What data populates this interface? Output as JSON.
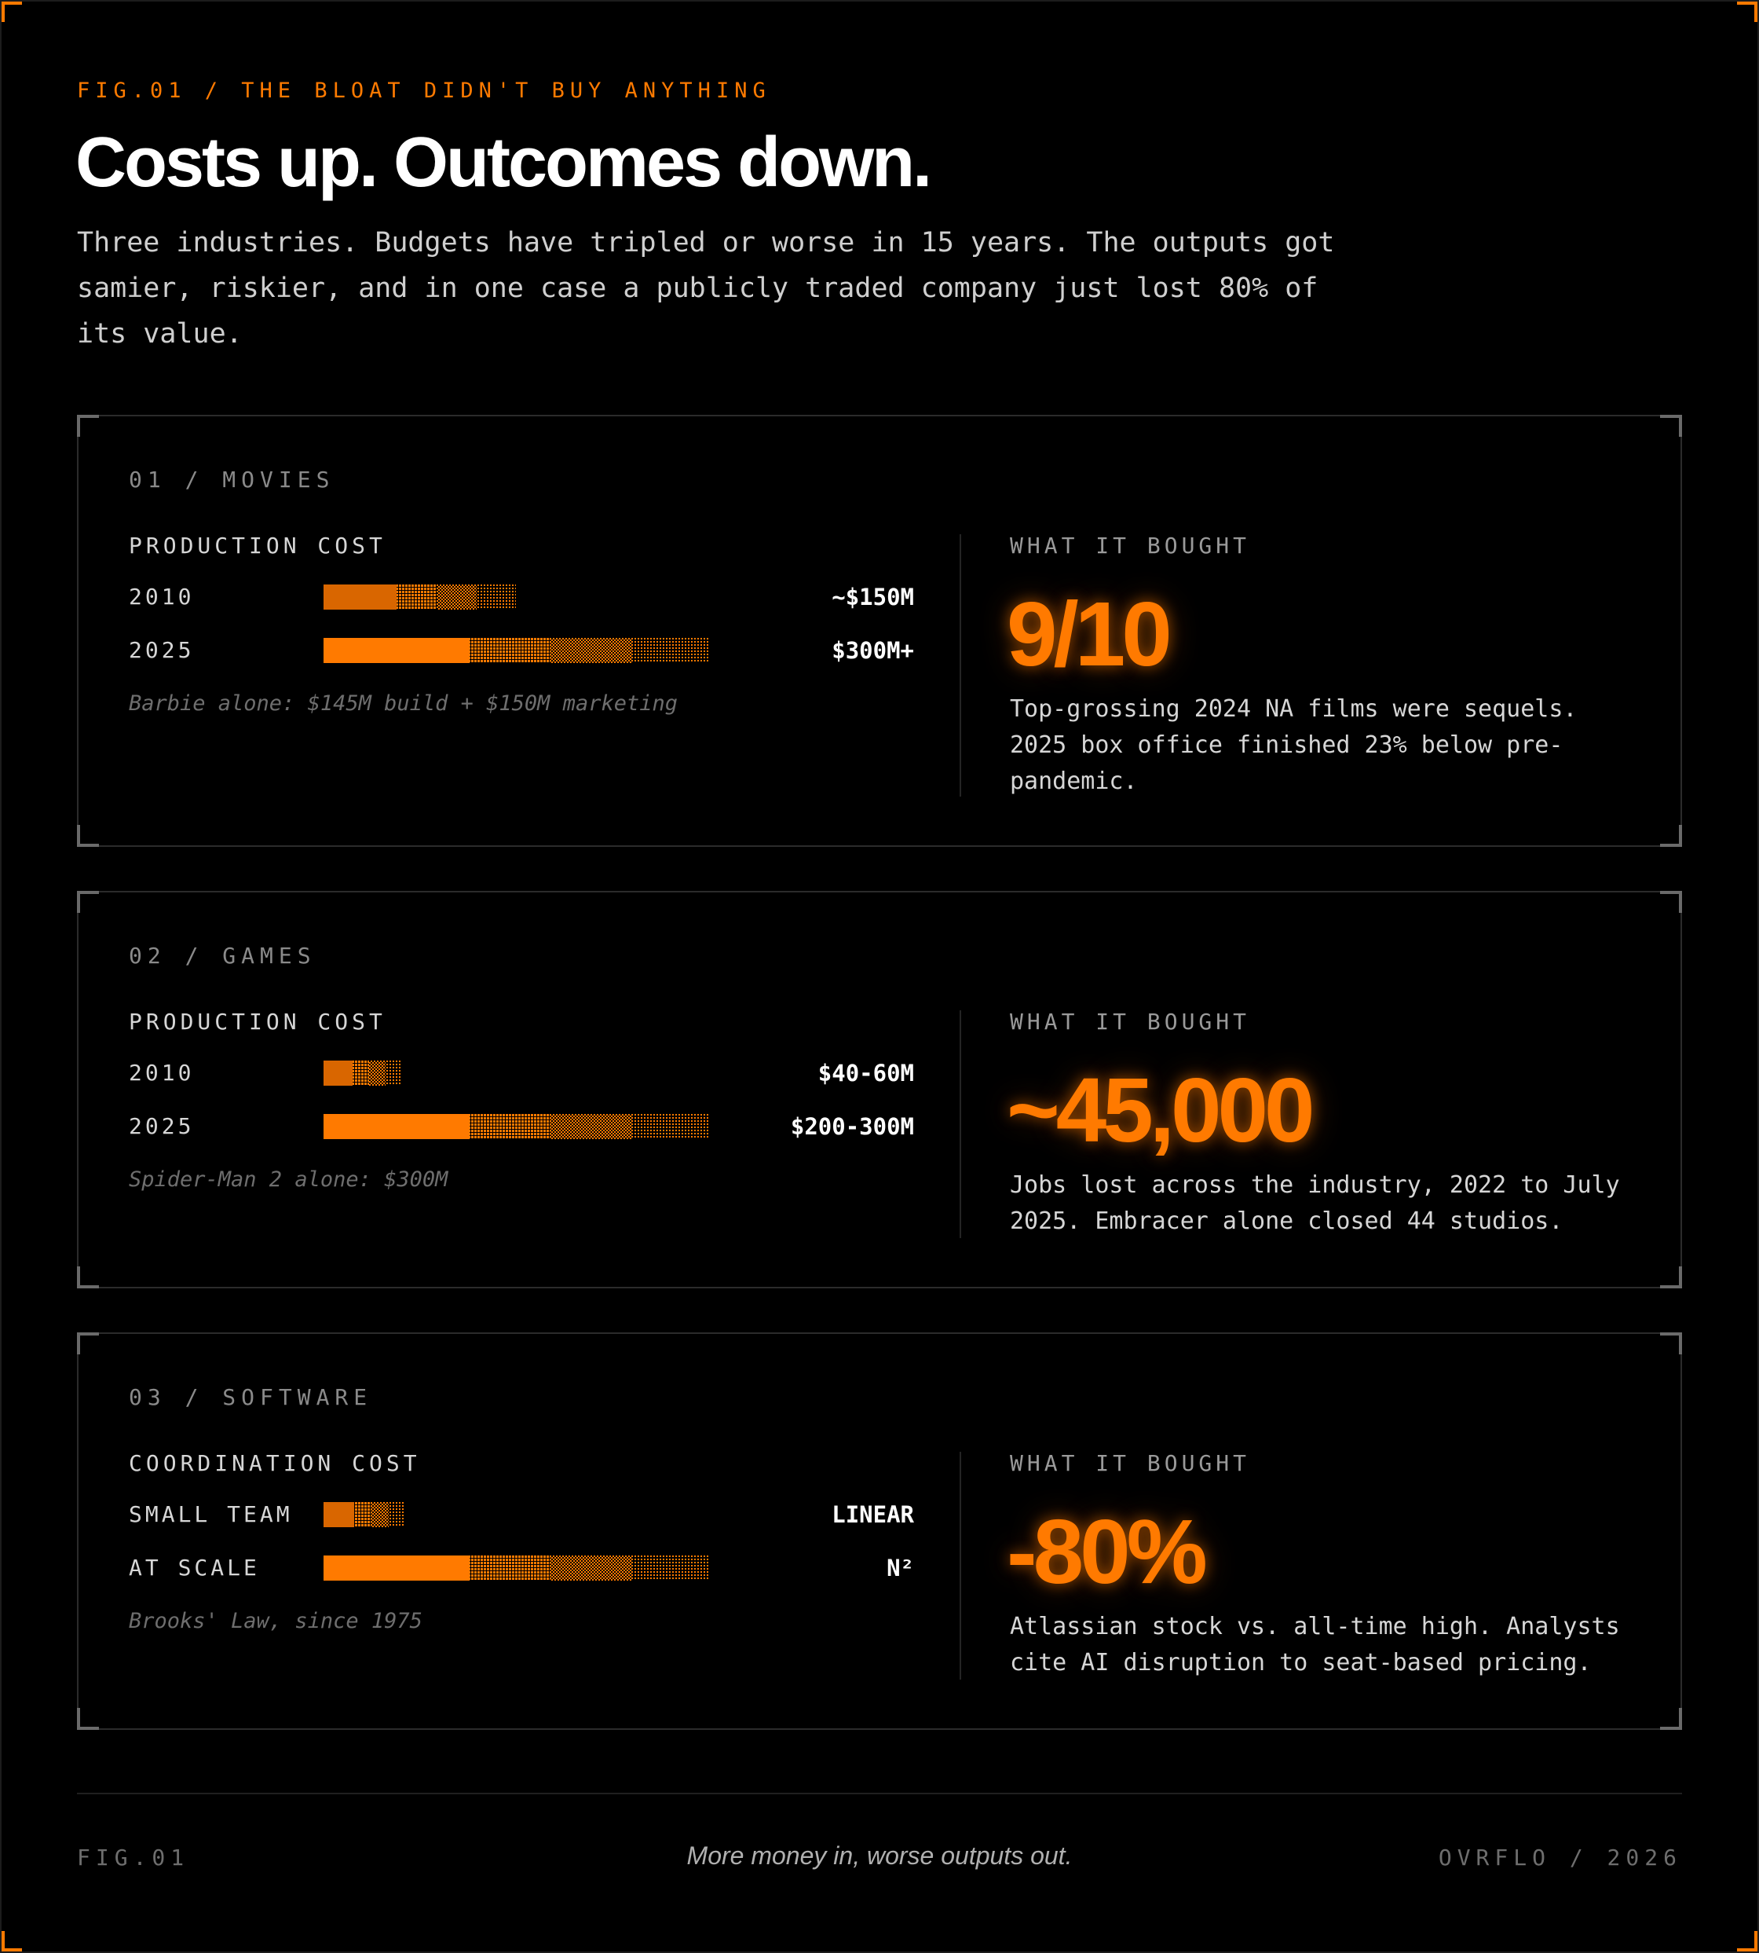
{
  "header": {
    "eyebrow": "FIG.01 / THE BLOAT DIDN'T BUY ANYTHING",
    "title": "Costs up. Outcomes down.",
    "subtitle": "Three industries. Budgets have tripled or worse in 15 years. The outputs got samier, riskier, and in one case a publicly traded company just lost 80% of its value."
  },
  "colors": {
    "accent": "#ff7a00",
    "background": "#000000"
  },
  "chart_data": [
    {
      "type": "bar",
      "label": "01 / MOVIES",
      "cost_label": "PRODUCTION COST",
      "categories": [
        "2010",
        "2025"
      ],
      "values": [
        150,
        300
      ],
      "value_labels": [
        "~$150M",
        "$300M+"
      ],
      "note": "Barbie alone: $145M build + $150M marketing",
      "bought_label": "WHAT IT BOUGHT",
      "stat": "9/10",
      "stat_desc": "Top-grossing 2024 NA films were sequels. 2025 box office finished 23% below pre-pandemic."
    },
    {
      "type": "bar",
      "label": "02 / GAMES",
      "cost_label": "PRODUCTION COST",
      "categories": [
        "2010",
        "2025"
      ],
      "values": [
        50,
        250
      ],
      "value_labels": [
        "$40-60M",
        "$200-300M"
      ],
      "note": "Spider-Man 2 alone: $300M",
      "bought_label": "WHAT IT BOUGHT",
      "stat": "~45,000",
      "stat_desc": "Jobs lost across the industry, 2022 to July 2025. Embracer alone closed 44 studios."
    },
    {
      "type": "bar",
      "label": "03 / SOFTWARE",
      "cost_label": "COORDINATION COST",
      "categories": [
        "SMALL TEAM",
        "AT SCALE"
      ],
      "values": [
        0.21,
        1
      ],
      "value_labels": [
        "LINEAR",
        "N²"
      ],
      "note": "Brooks' Law, since 1975",
      "bought_label": "WHAT IT BOUGHT",
      "stat": "-80%",
      "stat_desc": "Atlassian stock vs. all-time high. Analysts cite AI disruption to seat-based pricing."
    }
  ],
  "footer": {
    "left": "FIG.01",
    "middle": "More money in, worse outputs out.",
    "right": "OVRFLO / 2026"
  }
}
